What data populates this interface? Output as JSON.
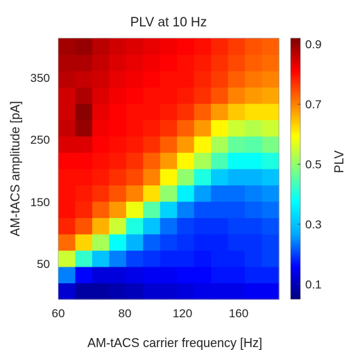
{
  "chart_data": {
    "type": "heatmap",
    "title": "PLV at 10 Hz",
    "xlabel": "AM-tACS carrier frequency [Hz]",
    "ylabel": "AM-tACS amplitude [pA]",
    "colorbar_label": "PLV",
    "x_ticks": [
      "60",
      "80",
      "120",
      "160"
    ],
    "y_ticks": [
      "50",
      "150",
      "250",
      "350"
    ],
    "colorbar_ticks": [
      "0.1",
      "0.3",
      "0.5",
      "0.7",
      "0.9"
    ],
    "x": [
      60,
      70,
      80,
      90,
      100,
      110,
      120,
      130,
      140,
      150,
      160,
      170,
      180
    ],
    "y": [
      0,
      25,
      50,
      75,
      100,
      125,
      150,
      175,
      200,
      225,
      250,
      275,
      300,
      325,
      350,
      375
    ],
    "z": [
      [
        0.12,
        0.08,
        0.08,
        0.09,
        0.1,
        0.12,
        0.12,
        0.13,
        0.14,
        0.14,
        0.14,
        0.15,
        0.15
      ],
      [
        0.24,
        0.16,
        0.13,
        0.13,
        0.14,
        0.15,
        0.15,
        0.16,
        0.16,
        0.17,
        0.17,
        0.18,
        0.18
      ],
      [
        0.55,
        0.42,
        0.3,
        0.24,
        0.2,
        0.19,
        0.18,
        0.18,
        0.17,
        0.18,
        0.18,
        0.19,
        0.2
      ],
      [
        0.72,
        0.63,
        0.52,
        0.38,
        0.28,
        0.22,
        0.2,
        0.19,
        0.18,
        0.18,
        0.19,
        0.19,
        0.2
      ],
      [
        0.78,
        0.74,
        0.66,
        0.55,
        0.4,
        0.3,
        0.23,
        0.2,
        0.19,
        0.19,
        0.2,
        0.2,
        0.21
      ],
      [
        0.8,
        0.78,
        0.73,
        0.68,
        0.58,
        0.45,
        0.32,
        0.24,
        0.21,
        0.21,
        0.21,
        0.22,
        0.23
      ],
      [
        0.8,
        0.79,
        0.77,
        0.74,
        0.7,
        0.62,
        0.5,
        0.36,
        0.26,
        0.23,
        0.23,
        0.24,
        0.25
      ],
      [
        0.8,
        0.8,
        0.79,
        0.77,
        0.75,
        0.7,
        0.6,
        0.5,
        0.4,
        0.31,
        0.28,
        0.28,
        0.3
      ],
      [
        0.81,
        0.81,
        0.8,
        0.79,
        0.77,
        0.73,
        0.68,
        0.6,
        0.52,
        0.44,
        0.38,
        0.38,
        0.4
      ],
      [
        0.84,
        0.84,
        0.81,
        0.8,
        0.79,
        0.77,
        0.73,
        0.68,
        0.6,
        0.52,
        0.46,
        0.45,
        0.48
      ],
      [
        0.86,
        0.9,
        0.82,
        0.81,
        0.8,
        0.79,
        0.77,
        0.73,
        0.68,
        0.6,
        0.55,
        0.53,
        0.55
      ],
      [
        0.85,
        0.91,
        0.83,
        0.81,
        0.8,
        0.8,
        0.79,
        0.77,
        0.73,
        0.68,
        0.64,
        0.62,
        0.62
      ],
      [
        0.85,
        0.88,
        0.84,
        0.82,
        0.81,
        0.8,
        0.8,
        0.79,
        0.77,
        0.74,
        0.7,
        0.68,
        0.67
      ],
      [
        0.87,
        0.86,
        0.85,
        0.83,
        0.82,
        0.81,
        0.8,
        0.8,
        0.78,
        0.76,
        0.73,
        0.71,
        0.7
      ],
      [
        0.88,
        0.88,
        0.86,
        0.84,
        0.83,
        0.82,
        0.81,
        0.8,
        0.79,
        0.77,
        0.75,
        0.73,
        0.72
      ],
      [
        0.89,
        0.9,
        0.87,
        0.85,
        0.84,
        0.83,
        0.82,
        0.81,
        0.8,
        0.78,
        0.76,
        0.74,
        0.73
      ]
    ],
    "zlim": [
      0.05,
      0.92
    ],
    "colormap": "jet",
    "colormap_stops": [
      "#00007f",
      "#0000ff",
      "#00aaff",
      "#00ffff",
      "#7fff7f",
      "#ffff00",
      "#ff7f00",
      "#ff0000",
      "#7f0000"
    ],
    "grid": false
  }
}
